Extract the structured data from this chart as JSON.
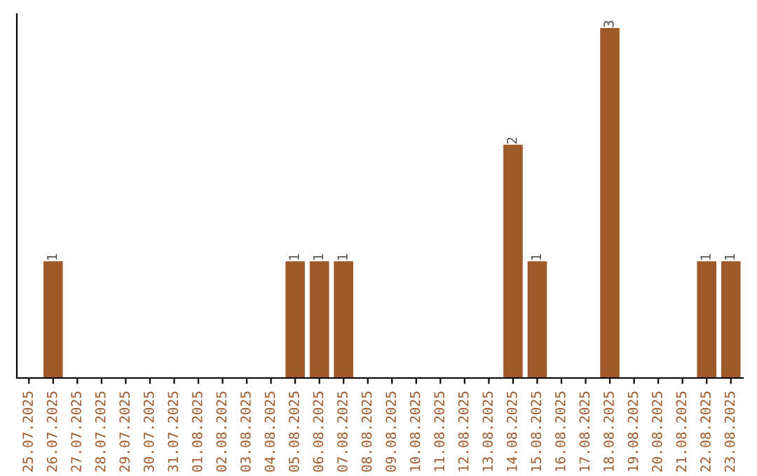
{
  "chart_data": {
    "type": "bar",
    "categories": [
      "25.07.2025",
      "26.07.2025",
      "27.07.2025",
      "28.07.2025",
      "29.07.2025",
      "30.07.2025",
      "31.07.2025",
      "01.08.2025",
      "02.08.2025",
      "03.08.2025",
      "04.08.2025",
      "05.08.2025",
      "06.08.2025",
      "07.08.2025",
      "08.08.2025",
      "09.08.2025",
      "10.08.2025",
      "11.08.2025",
      "12.08.2025",
      "13.08.2025",
      "14.08.2025",
      "15.08.2025",
      "16.08.2025",
      "17.08.2025",
      "18.08.2025",
      "19.08.2025",
      "20.08.2025",
      "21.08.2025",
      "22.08.2025",
      "23.08.2025"
    ],
    "values": [
      0,
      1,
      0,
      0,
      0,
      0,
      0,
      0,
      0,
      0,
      0,
      1,
      1,
      1,
      0,
      0,
      0,
      0,
      0,
      0,
      2,
      1,
      0,
      0,
      3,
      0,
      0,
      0,
      1,
      1
    ],
    "value_labels": [
      null,
      "1",
      null,
      null,
      null,
      null,
      null,
      null,
      null,
      null,
      null,
      "1",
      "1",
      "1",
      null,
      null,
      null,
      null,
      null,
      null,
      "2",
      "1",
      null,
      null,
      "3",
      null,
      null,
      null,
      "1",
      "1"
    ],
    "color": "#a0592a",
    "tick_labels": "x",
    "grid": false
  }
}
